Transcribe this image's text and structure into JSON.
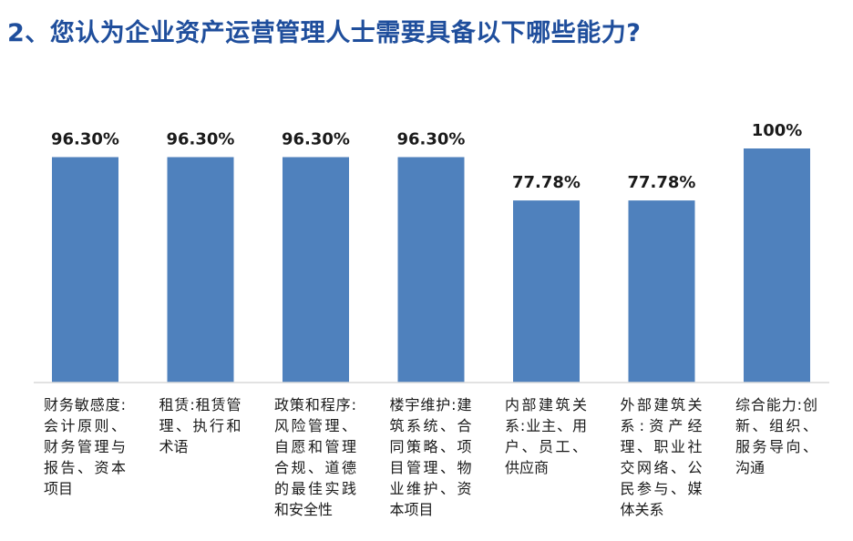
{
  "title": "2、您认为企业资产运营管理人士需要具备以下哪些能力?",
  "colors": {
    "bar": "#4f81bd",
    "axis": "#d9d9d9",
    "title": "#1f4e9c"
  },
  "chart_data": {
    "type": "bar",
    "title": "2、您认为企业资产运营管理人士需要具备以下哪些能力?",
    "categories": [
      "财务敏感度:会计原则、财务管理与报告、资本项目",
      "租赁:租赁管理、执行和术语",
      "政策和程序:风险管理、自愿和管理合规、道德的最佳实践和安全性",
      "楼宇维护:建筑系统、合同策略、项目管理、物业维护、资本项目",
      "内部建筑关系:业主、用户、员工、供应商",
      "外部建筑关系:资产经理、职业社交网络、公民参与、媒体关系",
      "综合能力:创新、组织、服务导向、沟通"
    ],
    "values": [
      96.3,
      96.3,
      96.3,
      96.3,
      77.78,
      77.78,
      100
    ],
    "data_labels": [
      "96.30%",
      "96.30%",
      "96.30%",
      "96.30%",
      "77.78%",
      "77.78%",
      "100%"
    ],
    "ylim": [
      0,
      100
    ],
    "xlabel": "",
    "ylabel": "",
    "grid": false,
    "legend": "none"
  }
}
